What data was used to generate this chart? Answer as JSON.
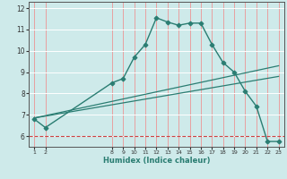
{
  "xlabel": "Humidex (Indice chaleur)",
  "bg_color": "#ceeaea",
  "grid_color": "#b0d8d8",
  "line_color": "#2a7d72",
  "curve_x": [
    1,
    2,
    8,
    9,
    10,
    11,
    12,
    13,
    14,
    15,
    16,
    17,
    18,
    19,
    20,
    21,
    22,
    23
  ],
  "curve_y": [
    6.8,
    6.4,
    8.5,
    8.7,
    9.7,
    10.3,
    11.55,
    11.35,
    11.2,
    11.3,
    11.3,
    10.3,
    9.45,
    9.0,
    8.1,
    7.4,
    5.75,
    5.75
  ],
  "line1_x": [
    1,
    23
  ],
  "line1_y": [
    6.85,
    9.3
  ],
  "line2_x": [
    1,
    23
  ],
  "line2_y": [
    6.85,
    8.8
  ],
  "hline_y": 6.0,
  "ylim": [
    5.5,
    12.3
  ],
  "xlim": [
    0.5,
    23.5
  ],
  "yticks": [
    6,
    7,
    8,
    9,
    10,
    11,
    12
  ],
  "xtick_vals": [
    1,
    2,
    8,
    9,
    10,
    11,
    12,
    13,
    14,
    15,
    16,
    17,
    18,
    19,
    20,
    21,
    22,
    23
  ]
}
